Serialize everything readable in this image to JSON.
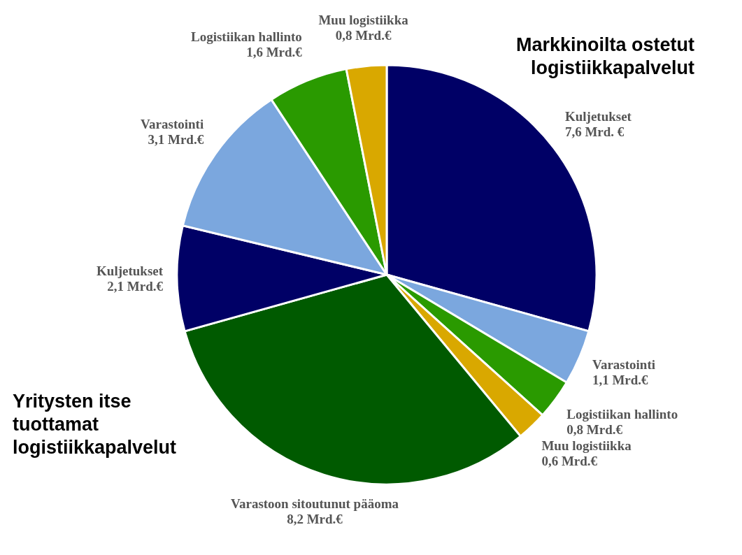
{
  "chart_data": {
    "type": "pie",
    "categories": [
      "Kuljetukset",
      "Varastointi",
      "Logistiikan hallinto",
      "Muu logistiikka",
      "Varastoon sitoutunut pääoma",
      "Kuljetukset",
      "Varastointi",
      "Logistiikan hallinto",
      "Muu logistiikka"
    ],
    "values": [
      7.6,
      1.1,
      0.8,
      0.6,
      8.2,
      2.1,
      3.1,
      1.6,
      0.8
    ],
    "value_labels": [
      "7,6 Mrd. €",
      "1,1 Mrd.€",
      "0,8 Mrd.€",
      "0,6 Mrd.€",
      "8,2 Mrd.€",
      "2,1 Mrd.€",
      "3,1 Mrd.€",
      "1,6 Mrd.€",
      "0,8 Mrd.€"
    ],
    "colors": [
      "#000066",
      "#7ba7de",
      "#2a9a00",
      "#d9a800",
      "#005a00",
      "#000066",
      "#7ba7de",
      "#2a9a00",
      "#d9a800"
    ],
    "annotations": [
      "Markkinoilta ostetut\nlogistiikkapalvelut",
      "Yritysten itse\ntuottamat\nlogistiikkapalvelut"
    ]
  }
}
